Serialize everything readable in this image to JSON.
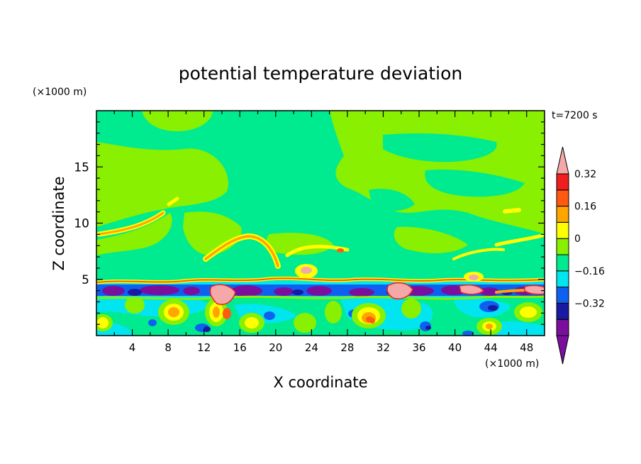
{
  "chart_data": {
    "type": "heatmap",
    "title": "potential temperature deviation",
    "xlabel": "X coordinate",
    "ylabel": "Z coordinate",
    "x_unit": "(×1000 m)",
    "y_unit": "(×1000 m)",
    "time_label": "t=7200 s",
    "xlim": [
      0,
      50
    ],
    "ylim": [
      0,
      20
    ],
    "x_ticks": [
      4,
      8,
      12,
      16,
      20,
      24,
      28,
      32,
      36,
      40,
      44,
      48
    ],
    "y_ticks": [
      5,
      10,
      15
    ],
    "colorbar": {
      "levels": [
        -0.48,
        -0.4,
        -0.32,
        -0.24,
        -0.16,
        -0.08,
        0,
        0.08,
        0.16,
        0.24,
        0.32,
        0.4
      ],
      "labels": [
        "0.32",
        "0.16",
        "0",
        "−0.16",
        "−0.32"
      ],
      "label_values": [
        0.32,
        0.16,
        0,
        -0.16,
        -0.32
      ],
      "colors": [
        "#7a0f9e",
        "#7a0f9e",
        "#1a1aa0",
        "#1060f0",
        "#00e5f0",
        "#00eb8f",
        "#88f000",
        "#ffff00",
        "#ffa500",
        "#ff5a10",
        "#f01e1e",
        "#f5a8a8"
      ]
    }
  }
}
